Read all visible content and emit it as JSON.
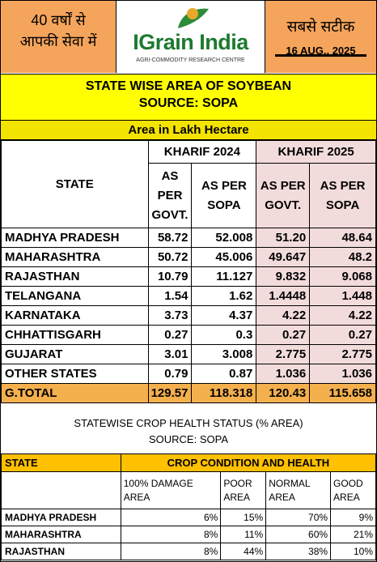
{
  "header": {
    "left_line1": "40 वर्षों से",
    "left_line2": "आपकी सेवा में",
    "brand": "IGrain India",
    "brand_sub": "AGRI-COMMODITY RESEARCH CENTRE",
    "right_line1": "सबसे सटीक",
    "date": "16 AUG., 2025"
  },
  "title": {
    "line1": "STATE WISE AREA OF SOYBEAN",
    "line2": "SOURCE: SOPA"
  },
  "unit": "Area in Lakh Hectare",
  "area_table": {
    "state_header": "STATE",
    "group1": "KHARIF 2024",
    "group2": "KHARIF 2025",
    "col_govt": "AS PER GOVT.",
    "col_sopa": "AS PER SOPA",
    "rows": [
      {
        "state": "MADHYA PRADESH",
        "v": [
          "58.72",
          "52.008",
          "51.20",
          "48.64"
        ]
      },
      {
        "state": "MAHARASHTRA",
        "v": [
          "50.72",
          "45.006",
          "49.647",
          "48.2"
        ]
      },
      {
        "state": "RAJASTHAN",
        "v": [
          "10.79",
          "11.127",
          "9.832",
          "9.068"
        ]
      },
      {
        "state": "TELANGANA",
        "v": [
          "1.54",
          "1.62",
          "1.4448",
          "1.448"
        ]
      },
      {
        "state": "KARNATAKA",
        "v": [
          "3.73",
          "4.37",
          "4.22",
          "4.22"
        ]
      },
      {
        "state": "CHHATTISGARH",
        "v": [
          "0.27",
          "0.3",
          "0.27",
          "0.27"
        ]
      },
      {
        "state": "GUJARAT",
        "v": [
          "3.01",
          "3.008",
          "2.775",
          "2.775"
        ]
      },
      {
        "state": "OTHER STATES",
        "v": [
          "0.79",
          "0.87",
          "1.036",
          "1.036"
        ]
      }
    ],
    "total": {
      "state": "G.TOTAL",
      "v": [
        "129.57",
        "118.318",
        "120.43",
        "115.658"
      ]
    }
  },
  "crop": {
    "title": "STATEWISE CROP HEALTH STATUS (% AREA)",
    "source": "SOURCE: SOPA",
    "state_header": "STATE",
    "condition_header": "CROP CONDITION AND HEALTH",
    "cols": [
      "100% DAMAGE AREA",
      "POOR AREA",
      "NORMAL AREA",
      "GOOD AREA"
    ],
    "rows": [
      {
        "state": "MADHYA PRADESH",
        "v": [
          "6%",
          "15%",
          "70%",
          "9%"
        ]
      },
      {
        "state": "MAHARASHTRA",
        "v": [
          "8%",
          "11%",
          "60%",
          "21%"
        ]
      },
      {
        "state": "RAJASTHAN",
        "v": [
          "8%",
          "44%",
          "38%",
          "10%"
        ]
      }
    ]
  }
}
